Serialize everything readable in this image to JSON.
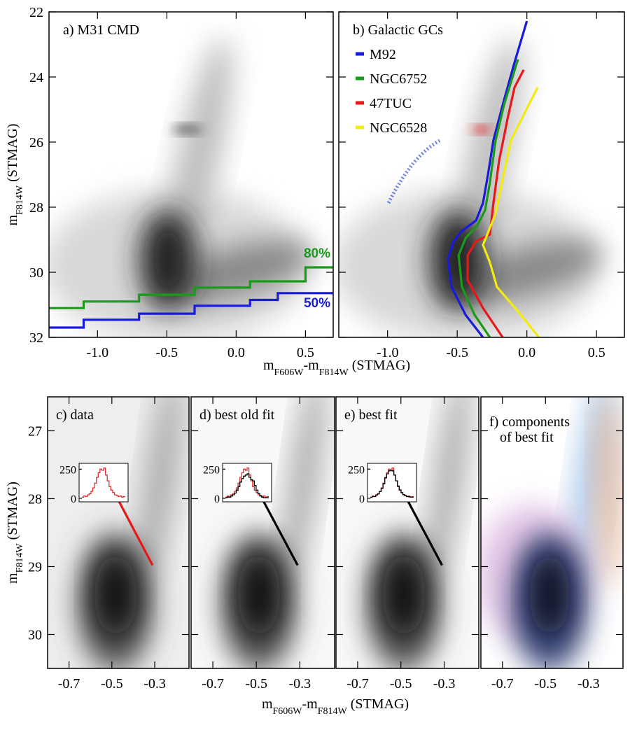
{
  "chart_data": [
    {
      "type": "line",
      "title": "a) M31 CMD",
      "xlim": [
        -1.35,
        0.7
      ],
      "ylim": [
        32,
        22
      ],
      "xticks": [
        {
          "value": -1,
          "label": "-1.0"
        },
        -0.5,
        {
          "value": 0,
          "label": "0.0"
        },
        0.5
      ],
      "yticks": [
        22,
        24,
        26,
        28,
        30,
        32
      ],
      "ylabel": [
        {
          "text": "m"
        },
        {
          "text": "F814W",
          "sub": true
        },
        {
          "text": " (STMAG)"
        }
      ],
      "xlabel": [
        {
          "text": "m"
        },
        {
          "text": "F606W",
          "sub": true
        },
        {
          "text": "-m"
        },
        {
          "text": "F814W",
          "sub": true
        },
        {
          "text": " (STMAG)"
        }
      ],
      "series": [
        {
          "name": "80%",
          "color": "#1a9a1a",
          "x": [
            -1.35,
            -1.1,
            -1.1,
            -0.7,
            -0.7,
            -0.3,
            -0.3,
            0.1,
            0.1,
            0.5,
            0.5,
            0.7
          ],
          "y": [
            31.1,
            31.1,
            30.9,
            30.9,
            30.69,
            30.69,
            30.47,
            30.47,
            30.28,
            30.28,
            29.85,
            29.85
          ]
        },
        {
          "name": "50%",
          "color": "#1a1adc",
          "x": [
            -1.35,
            -1.1,
            -1.1,
            -0.7,
            -0.7,
            -0.3,
            -0.3,
            0.1,
            0.1,
            0.3,
            0.3,
            0.7
          ],
          "y": [
            31.7,
            31.7,
            31.46,
            31.46,
            31.27,
            31.27,
            31.03,
            31.03,
            30.85,
            30.85,
            30.64,
            30.64
          ]
        }
      ]
    },
    {
      "type": "line",
      "title": "b) Galactic GCs",
      "xlim": [
        -1.35,
        0.7
      ],
      "ylim": [
        32,
        22
      ],
      "xticks": [
        {
          "value": -1,
          "label": "-1.0"
        },
        -0.5,
        {
          "value": 0,
          "label": "0.0"
        },
        0.5
      ],
      "legend": "upper left",
      "series": [
        {
          "name": "M92",
          "color": "#1a1adc",
          "x": [
            0.0,
            -0.09,
            -0.174,
            -0.24,
            -0.28,
            -0.315,
            -0.365,
            -0.466,
            -0.526,
            -0.566,
            -0.541,
            -0.44,
            -0.315
          ],
          "y": [
            22.28,
            23.57,
            24.86,
            25.94,
            27.01,
            27.87,
            28.41,
            28.73,
            29.05,
            29.59,
            30.45,
            31.31,
            32.0
          ]
        },
        {
          "name": "NGC6752",
          "color": "#1a9a1a",
          "x": [
            -0.064,
            -0.164,
            -0.224,
            -0.265,
            -0.3,
            -0.355,
            -0.44,
            -0.49,
            -0.466,
            -0.375,
            -0.265
          ],
          "y": [
            23.46,
            24.86,
            25.94,
            27.23,
            28.09,
            28.56,
            28.95,
            29.48,
            30.45,
            31.31,
            32.0
          ]
        },
        {
          "name": "47TUC",
          "color": "#e81818",
          "x": [
            -0.023,
            -0.089,
            -0.139,
            -0.2,
            -0.24,
            -0.265,
            -0.365,
            -0.425,
            -0.425,
            -0.315,
            -0.174
          ],
          "y": [
            23.78,
            24.32,
            25.29,
            26.58,
            27.87,
            28.84,
            29.05,
            29.48,
            30.24,
            31.1,
            32.0
          ]
        },
        {
          "name": "NGC6528",
          "color": "#f2ea10",
          "x": [
            0.077,
            -0.013,
            -0.114,
            -0.179,
            -0.224,
            -0.29,
            -0.315,
            -0.265,
            -0.215,
            -0.064,
            0.087
          ],
          "y": [
            24.32,
            25.08,
            25.94,
            27.23,
            28.19,
            28.9,
            29.16,
            29.7,
            30.45,
            31.2,
            32.0
          ]
        }
      ]
    },
    {
      "type": "line",
      "title": "c) data",
      "xlim": [
        -0.8,
        -0.14
      ],
      "ylim": [
        30.5,
        26.5
      ],
      "xticks": [
        -0.7,
        -0.5,
        -0.3
      ],
      "yticks": [
        27,
        28,
        29,
        30
      ],
      "ylabel": [
        {
          "text": "m"
        },
        {
          "text": "F814W",
          "sub": true
        },
        {
          "text": " (STMAG)"
        }
      ],
      "xlabel": [
        {
          "text": "m"
        },
        {
          "text": "F606W",
          "sub": true
        },
        {
          "text": "-m"
        },
        {
          "text": "F814W",
          "sub": true
        },
        {
          "text": " (STMAG)"
        }
      ],
      "series": [
        {
          "color": "#e81818",
          "x": [
            -0.5,
            -0.31
          ],
          "y": [
            27.84,
            28.98
          ]
        }
      ],
      "inset": {
        "ylim": [
          -30,
          300
        ],
        "yticks": [
          0,
          250
        ],
        "series": [
          {
            "color": "#e03030",
            "values": [
              10,
              20,
              15,
              30,
              40,
              60,
              90,
              130,
              180,
              220,
              250,
              240,
              260,
              200,
              150,
              100,
              70,
              50,
              30,
              25,
              15,
              20,
              10,
              15
            ]
          }
        ]
      }
    },
    {
      "type": "line",
      "title": "d) best old fit",
      "xlim": [
        -0.8,
        -0.14
      ],
      "ylim": [
        30.5,
        26.5
      ],
      "xticks": [
        -0.7,
        -0.5,
        -0.3
      ],
      "series": [
        {
          "color": "#000000",
          "x": [
            -0.5,
            -0.31
          ],
          "y": [
            27.84,
            28.98
          ]
        }
      ],
      "inset": {
        "ylim": [
          -30,
          300
        ],
        "yticks": [
          0,
          250
        ],
        "series": [
          {
            "color": "#e03030",
            "values": [
              10,
              20,
              15,
              30,
              40,
              60,
              90,
              130,
              180,
              220,
              250,
              240,
              260,
              200,
              150,
              100,
              70,
              50,
              30,
              25,
              15,
              20,
              10,
              15
            ]
          },
          {
            "color": "#000000",
            "values": [
              5,
              10,
              10,
              20,
              30,
              45,
              70,
              100,
              140,
              170,
              190,
              200,
              210,
              180,
              160,
              150,
              110,
              70,
              40,
              20,
              10,
              5,
              5,
              5
            ]
          }
        ]
      }
    },
    {
      "type": "line",
      "title": "e) best fit",
      "xlim": [
        -0.8,
        -0.14
      ],
      "ylim": [
        30.5,
        26.5
      ],
      "xticks": [
        -0.7,
        -0.5,
        -0.3
      ],
      "series": [
        {
          "color": "#000000",
          "x": [
            -0.5,
            -0.31
          ],
          "y": [
            27.84,
            28.98
          ]
        }
      ],
      "inset": {
        "ylim": [
          -30,
          300
        ],
        "yticks": [
          0,
          250
        ],
        "series": [
          {
            "color": "#e03030",
            "values": [
              10,
              20,
              15,
              30,
              40,
              60,
              90,
              130,
              180,
              220,
              250,
              240,
              260,
              200,
              150,
              100,
              70,
              50,
              30,
              25,
              15,
              20,
              10,
              15
            ]
          },
          {
            "color": "#000000",
            "values": [
              8,
              15,
              15,
              28,
              38,
              58,
              85,
              125,
              175,
              210,
              235,
              240,
              235,
              200,
              150,
              105,
              72,
              48,
              32,
              22,
              15,
              14,
              10,
              10
            ]
          }
        ]
      }
    },
    {
      "type": "image",
      "title": [
        "f) components",
        "of best fit"
      ],
      "xlim": [
        -0.8,
        -0.14
      ],
      "ylim": [
        30.5,
        26.5
      ],
      "xticks": [
        -0.7,
        -0.5,
        -0.3
      ]
    }
  ]
}
